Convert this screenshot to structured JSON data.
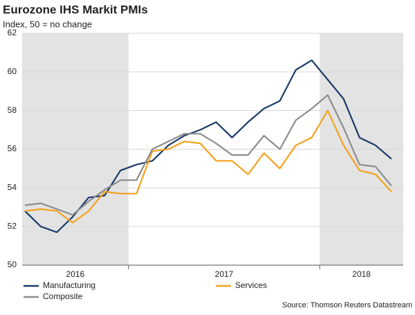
{
  "chart_data": {
    "type": "line",
    "title": "Eurozone IHS Markit PMIs",
    "subtitle": "Index, 50 = no change",
    "source": "Source: Thomson Reuters Datastream",
    "categories": [
      null,
      null,
      null,
      null,
      null,
      null,
      null,
      null,
      null,
      null,
      null,
      null,
      null,
      null,
      null,
      null,
      null,
      null,
      null,
      null,
      null,
      null,
      null,
      null
    ],
    "year_labels": [
      "2016",
      "2017",
      "2018"
    ],
    "series": [
      {
        "name": "Manufacturing",
        "color": "#1b3a68",
        "values": [
          52.8,
          52.0,
          51.7,
          52.5,
          53.5,
          53.6,
          54.9,
          55.2,
          55.4,
          56.2,
          56.7,
          57.0,
          57.4,
          56.6,
          57.4,
          58.1,
          58.5,
          60.1,
          60.6,
          59.6,
          58.6,
          56.6,
          56.2,
          55.5
        ]
      },
      {
        "name": "Services",
        "color": "#f5a11c",
        "values": [
          52.8,
          52.9,
          52.8,
          52.2,
          52.8,
          53.8,
          53.7,
          53.7,
          55.9,
          56.0,
          56.4,
          56.3,
          55.4,
          55.4,
          54.7,
          55.8,
          55.0,
          56.2,
          56.6,
          58.0,
          56.2,
          54.9,
          54.7,
          53.8
        ]
      },
      {
        "name": "Composite",
        "color": "#8c8c8c",
        "values": [
          53.1,
          53.2,
          52.9,
          52.6,
          53.3,
          53.9,
          54.4,
          54.4,
          56.0,
          56.4,
          56.8,
          56.8,
          56.3,
          55.7,
          55.7,
          56.7,
          56.0,
          57.5,
          58.1,
          58.8,
          57.1,
          55.2,
          55.1,
          54.1
        ]
      }
    ],
    "ylim": [
      50,
      62
    ],
    "yticks": [
      50,
      52,
      54,
      56,
      58,
      60,
      62
    ],
    "grid": true
  }
}
